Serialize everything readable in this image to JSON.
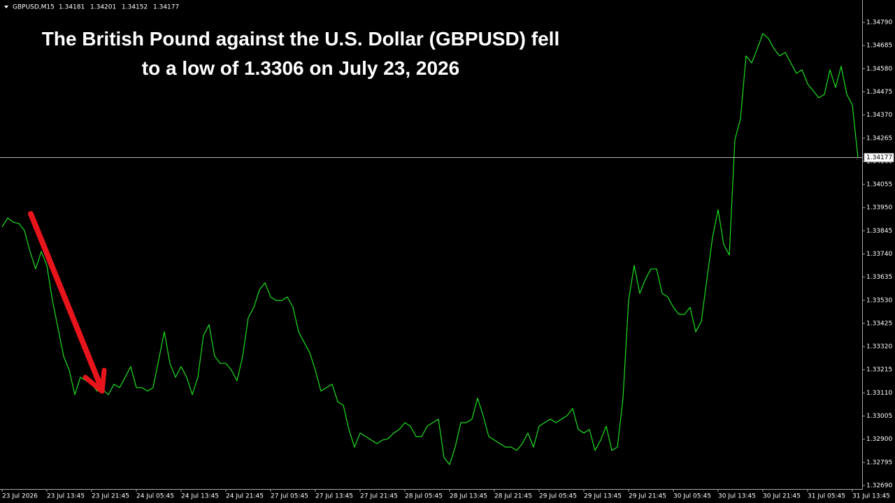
{
  "chart_data": {
    "type": "line",
    "header": {
      "symbol": "GBPUSD,M15",
      "ohlc": [
        1.34181,
        1.34201,
        1.34152,
        1.34177
      ]
    },
    "title": [
      "The British Pound against the U.S. Dollar (GBPUSD) fell",
      "to a low of 1.3306 on July 23, 2026"
    ],
    "current_price": 1.34177,
    "categories": [
      "23 Jul 2026",
      null,
      null,
      null,
      null,
      null,
      null,
      null,
      "23 Jul 13:45",
      null,
      null,
      null,
      null,
      null,
      null,
      null,
      "23 Jul 21:45",
      null,
      null,
      null,
      null,
      null,
      null,
      null,
      "24 Jul 05:45",
      null,
      null,
      null,
      null,
      null,
      null,
      null,
      "24 Jul 13:45",
      null,
      null,
      null,
      null,
      null,
      null,
      null,
      "24 Jul 21:45",
      null,
      null,
      null,
      null,
      null,
      null,
      null,
      "27 Jul 05:45",
      null,
      null,
      null,
      null,
      null,
      null,
      null,
      "27 Jul 13:45",
      null,
      null,
      null,
      null,
      null,
      null,
      null,
      "27 Jul 21:45",
      null,
      null,
      null,
      null,
      null,
      null,
      null,
      "28 Jul 05:45",
      null,
      null,
      null,
      null,
      null,
      null,
      null,
      "28 Jul 13:45",
      null,
      null,
      null,
      null,
      null,
      null,
      null,
      "28 Jul 21:45",
      null,
      null,
      null,
      null,
      null,
      null,
      null,
      "29 Jul 05:45",
      null,
      null,
      null,
      null,
      null,
      null,
      null,
      "29 Jul 13:45",
      null,
      null,
      null,
      null,
      null,
      null,
      null,
      "29 Jul 21:45",
      null,
      null,
      null,
      null,
      null,
      null,
      null,
      "30 Jul 05:45",
      null,
      null,
      null,
      null,
      null,
      null,
      null,
      "30 Jul 13:45",
      null,
      null,
      null,
      null,
      null,
      null,
      null,
      "30 Jul 21:45",
      null,
      null,
      null,
      null,
      null,
      null,
      null,
      "31 Jul 05:45",
      null,
      null,
      null,
      null,
      null,
      null,
      null,
      "31 Jul 13:45",
      null
    ],
    "series": [
      {
        "name": "GBPUSD",
        "color": "#1ee01e",
        "values": [
          1.33862,
          1.33903,
          1.33884,
          1.33878,
          1.33846,
          1.33751,
          1.33672,
          1.33751,
          1.33688,
          1.33529,
          1.33403,
          1.33276,
          1.33213,
          1.33102,
          1.33181,
          1.33165,
          1.33149,
          1.33118,
          1.33124,
          1.33102,
          1.33149,
          1.33134,
          1.33181,
          1.33229,
          1.33134,
          1.33134,
          1.33118,
          1.33134,
          1.3326,
          1.33387,
          1.33244,
          1.33181,
          1.33229,
          1.33181,
          1.33102,
          1.33181,
          1.33371,
          1.33419,
          1.33276,
          1.33244,
          1.33244,
          1.33213,
          1.33165,
          1.33276,
          1.3345,
          1.33498,
          1.33577,
          1.33609,
          1.33545,
          1.33529,
          1.33529,
          1.33545,
          1.33498,
          1.33387,
          1.33339,
          1.33292,
          1.33213,
          1.33118,
          1.33134,
          1.33149,
          1.3307,
          1.33054,
          1.32944,
          1.32864,
          1.32928,
          1.32912,
          1.32896,
          1.3288,
          1.32896,
          1.32902,
          1.32928,
          1.32944,
          1.32975,
          1.32959,
          1.32912,
          1.32912,
          1.32959,
          1.32975,
          1.32991,
          1.32817,
          1.32785,
          1.32864,
          1.32975,
          1.32975,
          1.32991,
          1.33086,
          1.33007,
          1.32912,
          1.32896,
          1.3288,
          1.32864,
          1.32864,
          1.32849,
          1.3288,
          1.32928,
          1.32864,
          1.32959,
          1.32975,
          1.32991,
          1.32975,
          1.32991,
          1.33007,
          1.33039,
          1.32944,
          1.32928,
          1.32944,
          1.32849,
          1.32896,
          1.32959,
          1.32849,
          1.32864,
          1.33086,
          1.33529,
          1.33688,
          1.33561,
          1.33625,
          1.33672,
          1.33672,
          1.33561,
          1.33545,
          1.33498,
          1.33466,
          1.33466,
          1.33498,
          1.33387,
          1.33434,
          1.33625,
          1.33815,
          1.33941,
          1.33783,
          1.33735,
          1.34258,
          1.34353,
          1.34638,
          1.34606,
          1.3467,
          1.34739,
          1.34717,
          1.3467,
          1.34638,
          1.34654,
          1.34606,
          1.34559,
          1.34575,
          1.34511,
          1.3448,
          1.34448,
          1.34464,
          1.34575,
          1.34495,
          1.34591,
          1.34464,
          1.34416,
          1.34177
        ]
      }
    ],
    "ylim": [
      1.32674,
      1.34882
    ],
    "yticks": [
      {
        "value": 1.3479,
        "label": "1.34790"
      },
      1.34685,
      {
        "value": 1.3458,
        "label": "1.34580"
      },
      1.34475,
      {
        "value": 1.3437,
        "label": "1.34370"
      },
      1.34265,
      {
        "value": 1.3416,
        "label": "1.34160"
      },
      1.34055,
      {
        "value": 1.3395,
        "label": "1.33950"
      },
      1.33845,
      {
        "value": 1.3374,
        "label": "1.33740"
      },
      1.33635,
      {
        "value": 1.3353,
        "label": "1.33530"
      },
      1.33425,
      {
        "value": 1.3332,
        "label": "1.33320"
      },
      1.33215,
      {
        "value": 1.3311,
        "label": "1.33110"
      },
      1.33005,
      {
        "value": 1.329,
        "label": "1.32900"
      },
      1.32795,
      {
        "value": 1.3269,
        "label": "1.32690"
      }
    ],
    "grid": false
  }
}
